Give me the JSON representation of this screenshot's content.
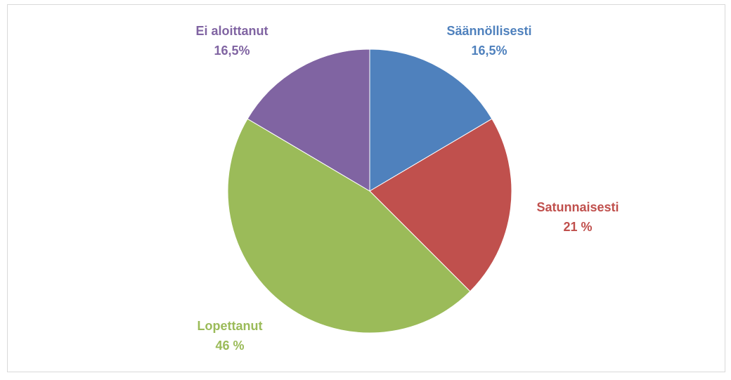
{
  "chart_data": {
    "type": "pie",
    "categories": [
      "Säännöllisesti",
      "Satunnaisesti",
      "Lopettanut",
      "Ei aloittanut"
    ],
    "values": [
      16.5,
      21,
      46,
      16.5
    ],
    "value_labels": [
      "16,5%",
      "21 %",
      "46 %",
      "16,5%"
    ],
    "colors": [
      "#4f81bd",
      "#c0504d",
      "#9bbb59",
      "#8064a2"
    ]
  }
}
